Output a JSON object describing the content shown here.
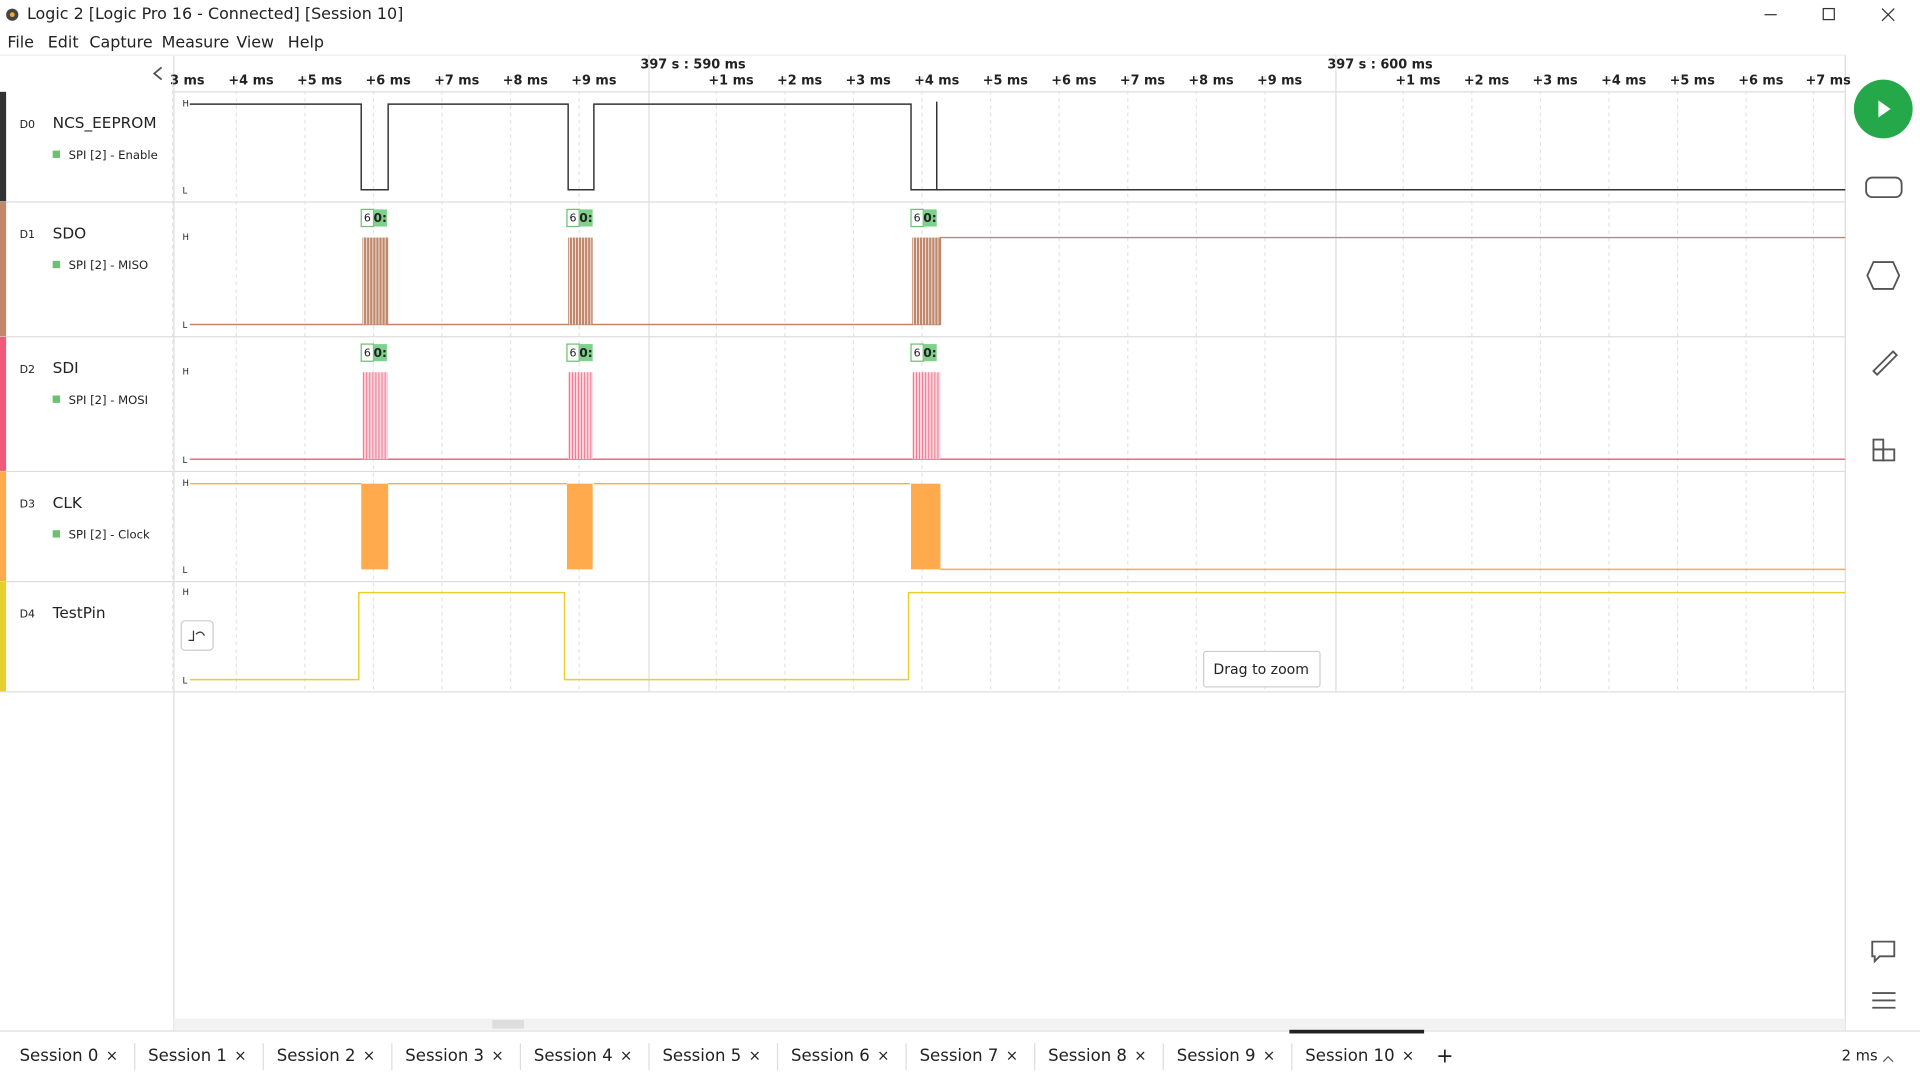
{
  "window": {
    "title": "Logic 2 [Logic Pro 16 - Connected] [Session 10]",
    "menu": [
      "File",
      "Edit",
      "Capture",
      "Measure",
      "View",
      "Help"
    ]
  },
  "timeline": {
    "major_labels": [
      "397 s : 590 ms",
      "397 s : 600 ms"
    ],
    "tick_labels": [
      "3 ms",
      "+4 ms",
      "+5 ms",
      "+6 ms",
      "+7 ms",
      "+8 ms",
      "+9 ms",
      "+1 ms",
      "+2 ms",
      "+3 ms",
      "+4 ms",
      "+5 ms",
      "+6 ms",
      "+7 ms",
      "+8 ms",
      "+9 ms",
      "+1 ms",
      "+2 ms",
      "+3 ms",
      "+4 ms",
      "+5 ms",
      "+6 ms",
      "+7 ms"
    ]
  },
  "channels": [
    {
      "id": "D0",
      "name": "NCS_EEPROM",
      "analyzer": "SPI [2] - Enable",
      "high": "H",
      "low": "L",
      "decode": []
    },
    {
      "id": "D1",
      "name": "SDO",
      "analyzer": "SPI [2] - MISO",
      "high": "H",
      "low": "L",
      "decode": [
        "6",
        "0:",
        "6",
        "0:",
        "6",
        "0:"
      ]
    },
    {
      "id": "D2",
      "name": "SDI",
      "analyzer": "SPI [2] - MOSI",
      "high": "H",
      "low": "L",
      "decode": [
        "6",
        "0:",
        "6",
        "0:",
        "6",
        "0:"
      ]
    },
    {
      "id": "D3",
      "name": "CLK",
      "analyzer": "SPI [2] - Clock",
      "high": "H",
      "low": "L",
      "decode": []
    },
    {
      "id": "D4",
      "name": "TestPin",
      "high": "H",
      "low": "L",
      "decode": []
    }
  ],
  "tooltip": "Drag to zoom",
  "tabs": [
    "Session 0",
    "Session 1",
    "Session 2",
    "Session 3",
    "Session 4",
    "Session 5",
    "Session 6",
    "Session 7",
    "Session 8",
    "Session 9",
    "Session 10"
  ],
  "tab_close": "×",
  "add_tab": "+",
  "time_scale": "2 ms"
}
